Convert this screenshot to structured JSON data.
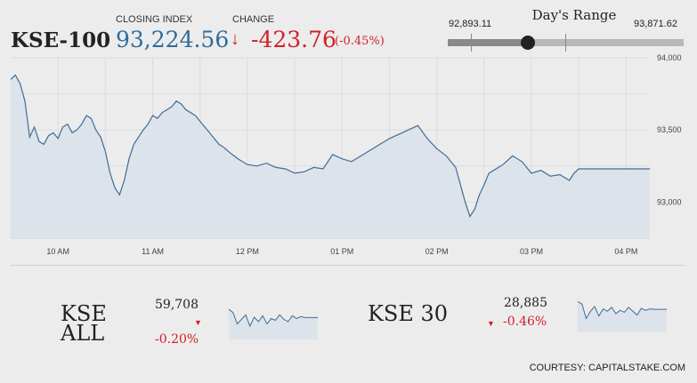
{
  "header": {
    "index_name": "KSE-100",
    "closing_label": "CLOSING INDEX",
    "closing_value": "93,224.56",
    "change_label": "CHANGE",
    "change_value": "-423.76",
    "change_pct": "(-0.45%)",
    "arrow_icon": "down-arrow-icon"
  },
  "day_range": {
    "title": "Day's Range",
    "low_label": "92,893.11",
    "high_label": "93,871.62",
    "low": 92893.11,
    "high": 93871.62,
    "current": 93224.56
  },
  "colors": {
    "accent": "#2f6b9a",
    "negative": "#d0202a",
    "line": "#3e6d98",
    "fill": "#dde3ea"
  },
  "chart_data": {
    "type": "area",
    "x_ticks": [
      "10 AM",
      "11 AM",
      "12 PM",
      "01 PM",
      "02 PM",
      "03 PM",
      "04 PM"
    ],
    "y_ticks": [
      "94,000",
      "93,500",
      "93,000"
    ],
    "ylim": [
      92750,
      94000
    ],
    "xlim": [
      9.5,
      16.25
    ],
    "x": [
      9.5,
      9.55,
      9.6,
      9.65,
      9.7,
      9.75,
      9.8,
      9.85,
      9.9,
      9.95,
      10.0,
      10.05,
      10.1,
      10.15,
      10.2,
      10.25,
      10.3,
      10.35,
      10.4,
      10.45,
      10.5,
      10.55,
      10.6,
      10.65,
      10.7,
      10.75,
      10.8,
      10.85,
      10.9,
      10.95,
      11.0,
      11.05,
      11.1,
      11.15,
      11.2,
      11.25,
      11.3,
      11.35,
      11.4,
      11.45,
      11.5,
      11.55,
      11.6,
      11.65,
      11.7,
      11.75,
      11.8,
      11.9,
      12.0,
      12.1,
      12.2,
      12.3,
      12.4,
      12.5,
      12.6,
      12.7,
      12.8,
      12.9,
      13.0,
      13.1,
      13.2,
      13.3,
      13.4,
      13.5,
      13.6,
      13.7,
      13.8,
      13.9,
      14.0,
      14.1,
      14.2,
      14.3,
      14.35,
      14.4,
      14.45,
      14.5,
      14.55,
      14.6,
      14.7,
      14.8,
      14.9,
      15.0,
      15.1,
      15.2,
      15.3,
      15.35,
      15.4,
      15.45,
      15.5,
      15.6,
      15.7,
      15.8,
      15.9,
      16.0,
      16.1,
      16.25
    ],
    "values": [
      93850,
      93880,
      93820,
      93700,
      93450,
      93520,
      93420,
      93400,
      93460,
      93480,
      93440,
      93520,
      93540,
      93480,
      93500,
      93540,
      93600,
      93580,
      93500,
      93450,
      93350,
      93200,
      93100,
      93050,
      93150,
      93300,
      93400,
      93450,
      93500,
      93540,
      93600,
      93580,
      93620,
      93640,
      93660,
      93700,
      93680,
      93640,
      93620,
      93600,
      93560,
      93520,
      93480,
      93440,
      93400,
      93380,
      93350,
      93300,
      93260,
      93250,
      93270,
      93240,
      93230,
      93200,
      93210,
      93240,
      93230,
      93330,
      93300,
      93280,
      93320,
      93360,
      93400,
      93440,
      93470,
      93500,
      93530,
      93440,
      93370,
      93320,
      93240,
      93000,
      92900,
      92950,
      93050,
      93120,
      93200,
      93220,
      93260,
      93320,
      93280,
      93200,
      93220,
      93180,
      93190,
      93170,
      93150,
      93200,
      93230,
      93230,
      93230,
      93230,
      93230,
      93230,
      93230,
      93230
    ]
  },
  "mini": [
    {
      "name_line1": "KSE",
      "name_line2": "ALL",
      "value": "59,708",
      "pct": "-0.20%",
      "values": [
        62,
        55,
        30,
        40,
        50,
        25,
        45,
        35,
        48,
        30,
        42,
        38,
        50,
        40,
        35,
        48,
        42,
        46,
        44,
        44,
        44,
        44
      ]
    },
    {
      "name_line1": "KSE 30",
      "value": "28,885",
      "pct": "-0.46%",
      "values": [
        60,
        55,
        25,
        40,
        50,
        30,
        45,
        40,
        48,
        35,
        42,
        38,
        48,
        40,
        32,
        46,
        42,
        45,
        44,
        44,
        44,
        44
      ]
    }
  ],
  "footer": {
    "courtesy": "COURTESY: CAPITALSTAKE.COM"
  }
}
